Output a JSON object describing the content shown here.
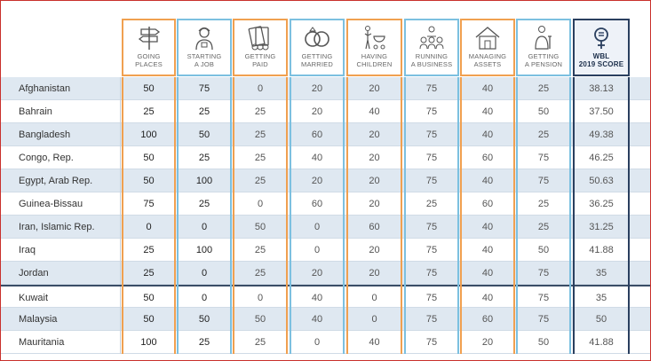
{
  "table": {
    "columns": [
      {
        "key": "going_places",
        "label": "GOING\nPLACES",
        "icon": "signpost-icon",
        "accent": "orange"
      },
      {
        "key": "starting_a_job",
        "label": "STARTING\nA JOB",
        "icon": "worker-icon",
        "accent": "blue"
      },
      {
        "key": "getting_paid",
        "label": "GETTING\nPAID",
        "icon": "money-icon",
        "accent": "orange"
      },
      {
        "key": "getting_married",
        "label": "GETTING\nMARRIED",
        "icon": "rings-icon",
        "accent": "blue"
      },
      {
        "key": "having_children",
        "label": "HAVING\nCHILDREN",
        "icon": "stroller-icon",
        "accent": "orange"
      },
      {
        "key": "running_a_business",
        "label": "RUNNING\nA BUSINESS",
        "icon": "team-icon",
        "accent": "blue"
      },
      {
        "key": "managing_assets",
        "label": "MANAGING\nASSETS",
        "icon": "house-icon",
        "accent": "orange"
      },
      {
        "key": "getting_a_pension",
        "label": "GETTING\nA PENSION",
        "icon": "elderly-icon",
        "accent": "blue"
      },
      {
        "key": "wbl_score",
        "label": "WBL\n2019 SCORE",
        "icon": "gender-icon",
        "accent": "navy"
      }
    ],
    "rows": [
      {
        "country": "Afghanistan",
        "values": [
          "50",
          "75",
          "0",
          "20",
          "20",
          "75",
          "40",
          "25",
          "38.13"
        ]
      },
      {
        "country": "Bahrain",
        "values": [
          "25",
          "25",
          "25",
          "20",
          "40",
          "75",
          "40",
          "50",
          "37.50"
        ]
      },
      {
        "country": "Bangladesh",
        "values": [
          "100",
          "50",
          "25",
          "60",
          "20",
          "75",
          "40",
          "25",
          "49.38"
        ]
      },
      {
        "country": "Congo, Rep.",
        "values": [
          "50",
          "25",
          "25",
          "40",
          "20",
          "75",
          "60",
          "75",
          "46.25"
        ]
      },
      {
        "country": "Egypt, Arab Rep.",
        "values": [
          "50",
          "100",
          "25",
          "20",
          "20",
          "75",
          "40",
          "75",
          "50.63"
        ]
      },
      {
        "country": "Guinea-Bissau",
        "values": [
          "75",
          "25",
          "0",
          "60",
          "20",
          "25",
          "60",
          "25",
          "36.25"
        ]
      },
      {
        "country": "Iran, Islamic Rep.",
        "values": [
          "0",
          "0",
          "50",
          "0",
          "60",
          "75",
          "40",
          "25",
          "31.25"
        ]
      },
      {
        "country": "Iraq",
        "values": [
          "25",
          "100",
          "25",
          "0",
          "20",
          "75",
          "40",
          "50",
          "41.88"
        ]
      },
      {
        "country": "Jordan",
        "values": [
          "25",
          "0",
          "25",
          "20",
          "20",
          "75",
          "40",
          "75",
          "35"
        ]
      },
      {
        "country": "Kuwait",
        "values": [
          "50",
          "0",
          "0",
          "40",
          "0",
          "75",
          "40",
          "75",
          "35"
        ]
      },
      {
        "country": "Malaysia",
        "values": [
          "50",
          "50",
          "50",
          "40",
          "0",
          "75",
          "60",
          "75",
          "50"
        ]
      },
      {
        "country": "Mauritania",
        "values": [
          "100",
          "25",
          "25",
          "0",
          "40",
          "75",
          "20",
          "50",
          "41.88"
        ]
      }
    ]
  },
  "colors": {
    "orange": "#f0a050",
    "blue": "#7cc0e0",
    "navy": "#2a3f5f",
    "row_shade": "#dfe8f1"
  }
}
